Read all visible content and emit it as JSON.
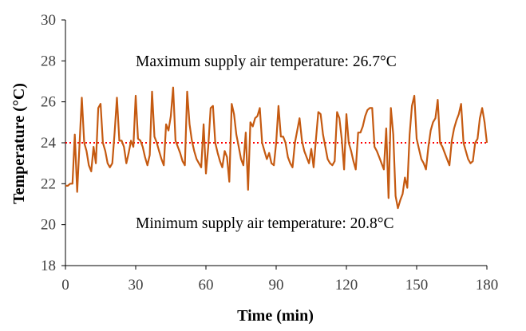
{
  "chart_data": {
    "type": "line",
    "xlabel": "Time (min)",
    "ylabel": "Temperature (°C)",
    "xlim": [
      0,
      180
    ],
    "ylim": [
      18,
      30
    ],
    "xticks": [
      0,
      30,
      60,
      90,
      120,
      150,
      180
    ],
    "yticks": [
      18,
      20,
      22,
      24,
      26,
      28,
      30
    ],
    "grid": false,
    "legend": "none",
    "annotations": [
      "Maximum supply air temperature: 26.7°C",
      "Minimum supply air temperature: 20.8°C"
    ],
    "reference_line": {
      "y": 24.0,
      "style": "dotted",
      "color": "#ff0000"
    },
    "series": [
      {
        "color": "#c55a11",
        "x": [
          0,
          1,
          2,
          3,
          4,
          5,
          6,
          7,
          8,
          9,
          10,
          11,
          12,
          13,
          14,
          15,
          16,
          17,
          18,
          19,
          20,
          21,
          22,
          23,
          24,
          25,
          26,
          27,
          28,
          29,
          30,
          31,
          32,
          33,
          34,
          35,
          36,
          37,
          38,
          39,
          40,
          41,
          42,
          43,
          44,
          45,
          46,
          47,
          48,
          49,
          50,
          51,
          52,
          53,
          54,
          55,
          56,
          57,
          58,
          59,
          60,
          61,
          62,
          63,
          64,
          65,
          66,
          67,
          68,
          69,
          70,
          71,
          72,
          73,
          74,
          75,
          76,
          77,
          78,
          79,
          80,
          81,
          82,
          83,
          84,
          85,
          86,
          87,
          88,
          89,
          90,
          91,
          92,
          93,
          94,
          95,
          96,
          97,
          98,
          99,
          100,
          101,
          102,
          103,
          104,
          105,
          106,
          107,
          108,
          109,
          110,
          111,
          112,
          113,
          114,
          115,
          116,
          117,
          118,
          119,
          120,
          121,
          122,
          123,
          124,
          125,
          126,
          127,
          128,
          129,
          130,
          131,
          132,
          133,
          134,
          135,
          136,
          137,
          138,
          139,
          140,
          141,
          142,
          143,
          144,
          145,
          146,
          147,
          148,
          149,
          150,
          151,
          152,
          153,
          154,
          155,
          156,
          157,
          158,
          159,
          160,
          161,
          162,
          163,
          164,
          165,
          166,
          167,
          168,
          169,
          170,
          171,
          172,
          173,
          174,
          175,
          176,
          177,
          178,
          179,
          180
        ],
        "y": [
          21.9,
          21.9,
          22.0,
          22.0,
          24.4,
          21.6,
          23.9,
          26.2,
          24.0,
          23.6,
          22.9,
          22.6,
          23.8,
          23.0,
          25.7,
          25.9,
          24.0,
          23.6,
          23.0,
          22.8,
          23.0,
          24.5,
          26.2,
          24.1,
          24.1,
          23.8,
          23.0,
          23.5,
          24.1,
          23.8,
          26.3,
          24.2,
          24.1,
          23.8,
          23.3,
          22.9,
          23.4,
          26.5,
          24.3,
          24.0,
          23.6,
          23.2,
          22.9,
          24.9,
          24.6,
          25.3,
          26.7,
          24.1,
          23.8,
          23.5,
          23.1,
          22.9,
          26.5,
          24.9,
          24.1,
          23.6,
          23.2,
          23.0,
          22.8,
          24.9,
          22.5,
          23.8,
          25.7,
          25.8,
          24.0,
          23.5,
          23.1,
          22.8,
          23.6,
          23.3,
          22.1,
          25.9,
          25.4,
          24.4,
          23.8,
          23.2,
          22.9,
          24.5,
          21.7,
          25.0,
          24.8,
          25.2,
          25.3,
          25.7,
          24.0,
          23.6,
          23.2,
          23.5,
          23.0,
          22.9,
          24.0,
          25.8,
          24.3,
          24.3,
          24.0,
          23.3,
          23.0,
          22.8,
          24.0,
          24.6,
          25.2,
          24.1,
          23.6,
          23.3,
          23.0,
          23.7,
          22.8,
          24.2,
          25.5,
          25.4,
          24.4,
          23.8,
          23.2,
          23.0,
          22.9,
          23.1,
          25.5,
          25.2,
          24.2,
          22.7,
          25.4,
          24.0,
          23.6,
          23.1,
          22.7,
          24.5,
          24.5,
          24.8,
          25.3,
          25.6,
          25.7,
          25.7,
          23.8,
          23.6,
          23.3,
          23.0,
          22.7,
          24.7,
          21.3,
          25.7,
          24.4,
          21.4,
          20.8,
          21.2,
          21.5,
          22.3,
          21.8,
          24.4,
          25.8,
          26.3,
          24.2,
          23.7,
          23.2,
          23.0,
          22.7,
          23.8,
          24.6,
          25.0,
          25.2,
          26.1,
          24.0,
          23.8,
          23.5,
          23.2,
          22.9,
          24.1,
          24.7,
          25.1,
          25.4,
          25.9,
          24.0,
          23.6,
          23.2,
          23.0,
          23.1,
          24.0,
          24.2,
          25.2,
          25.7,
          25.0,
          24.0
        ]
      }
    ]
  }
}
